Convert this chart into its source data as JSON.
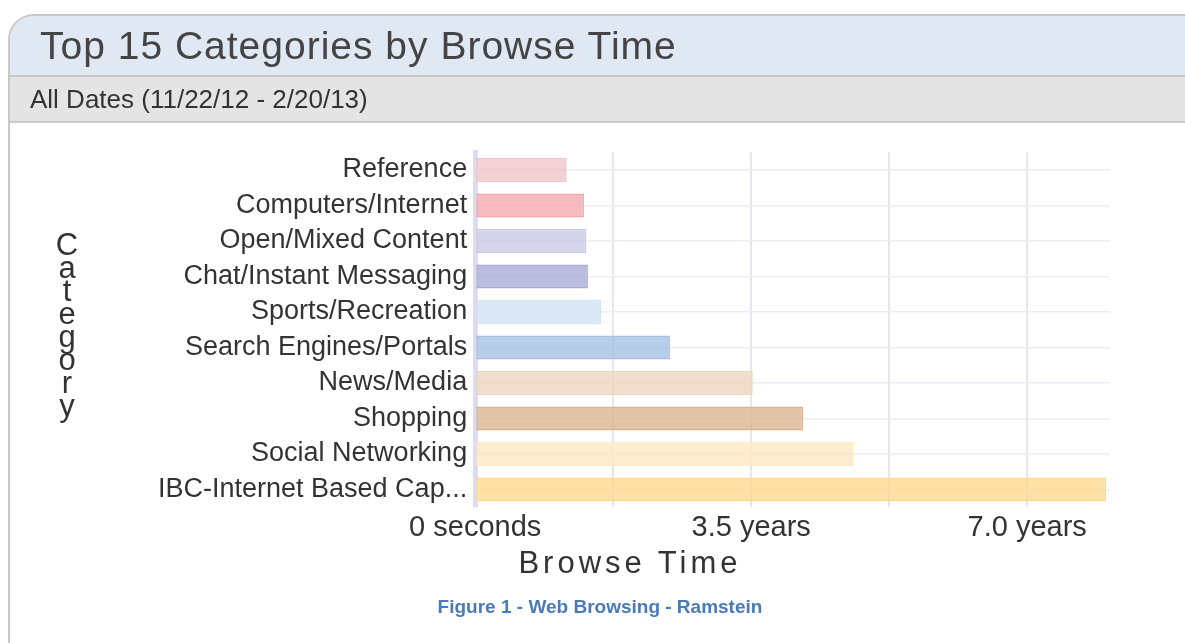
{
  "chart_data": {
    "type": "bar",
    "orientation": "horizontal",
    "title": "Top 15 Categories by Browse Time",
    "subtitle": "All Dates (11/22/12 - 2/20/13)",
    "xlabel": "Browse Time",
    "ylabel": "Category",
    "categories": [
      "Reference",
      "Computers/Internet",
      "Open/Mixed Content",
      "Chat/Instant Messaging",
      "Sports/Recreation",
      "Search Engines/Portals",
      "News/Media",
      "Shopping",
      "Social Networking",
      "IBC-Internet Based Cap..."
    ],
    "values": [
      1.16,
      1.38,
      1.41,
      1.43,
      1.6,
      2.47,
      3.52,
      4.16,
      4.8,
      8.0
    ],
    "colors": [
      "#f0c4c8",
      "#f2aab0",
      "#c9cbe6",
      "#a9acd6",
      "#d2e2f4",
      "#a6c0e4",
      "#ecd4be",
      "#dbb592",
      "#fde9c2",
      "#fcd98e"
    ],
    "xlim": [
      0,
      8.05
    ],
    "xticks": [
      {
        "value": 0,
        "label": "0 seconds"
      },
      {
        "value": 1.75,
        "label": null
      },
      {
        "value": 3.5,
        "label": "3.5 years"
      },
      {
        "value": 5.25,
        "label": null
      },
      {
        "value": 7,
        "label": "7.0 years"
      }
    ],
    "grid": true,
    "legend": false,
    "annotations": [
      "Figure 1 - Web Browsing - Ramstein"
    ]
  }
}
